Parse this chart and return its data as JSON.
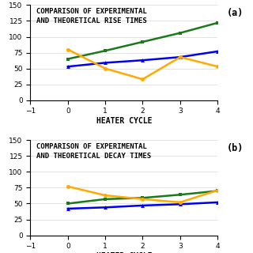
{
  "top_title": "COMPARISON OF EXPERIMENTAL\nAND THEORETICAL RISE TIMES",
  "bottom_title": "COMPARISON OF EXPERIMENTAL\nAND THEORETICAL DECAY TIMES",
  "x": [
    0,
    1,
    2,
    3,
    4
  ],
  "rise_green": [
    65,
    78,
    92,
    106,
    122
  ],
  "rise_blue": [
    53,
    59,
    63,
    68,
    77
  ],
  "rise_orange": [
    80,
    50,
    33,
    68,
    53
  ],
  "decay_green": [
    50,
    57,
    59,
    64,
    70
  ],
  "decay_blue": [
    42,
    44,
    47,
    49,
    52
  ],
  "decay_orange": [
    77,
    63,
    57,
    52,
    71
  ],
  "green_color": "#1a7a1a",
  "blue_color": "#0000ee",
  "orange_color": "#ffaa00",
  "ylim": [
    0,
    150
  ],
  "yticks": [
    0,
    25,
    50,
    75,
    100,
    125,
    150
  ],
  "xlim": [
    -1,
    4
  ],
  "xticks": [
    -1,
    0,
    1,
    2,
    3,
    4
  ],
  "xlabel": "HEATER CYCLE",
  "title_fontsize": 6.5,
  "axis_fontsize": 7.0,
  "tick_fontsize": 6.5,
  "label_fontsize": 8.5,
  "bg_color": "#ffffff",
  "panel_labels": [
    "(a)",
    "(b)"
  ]
}
